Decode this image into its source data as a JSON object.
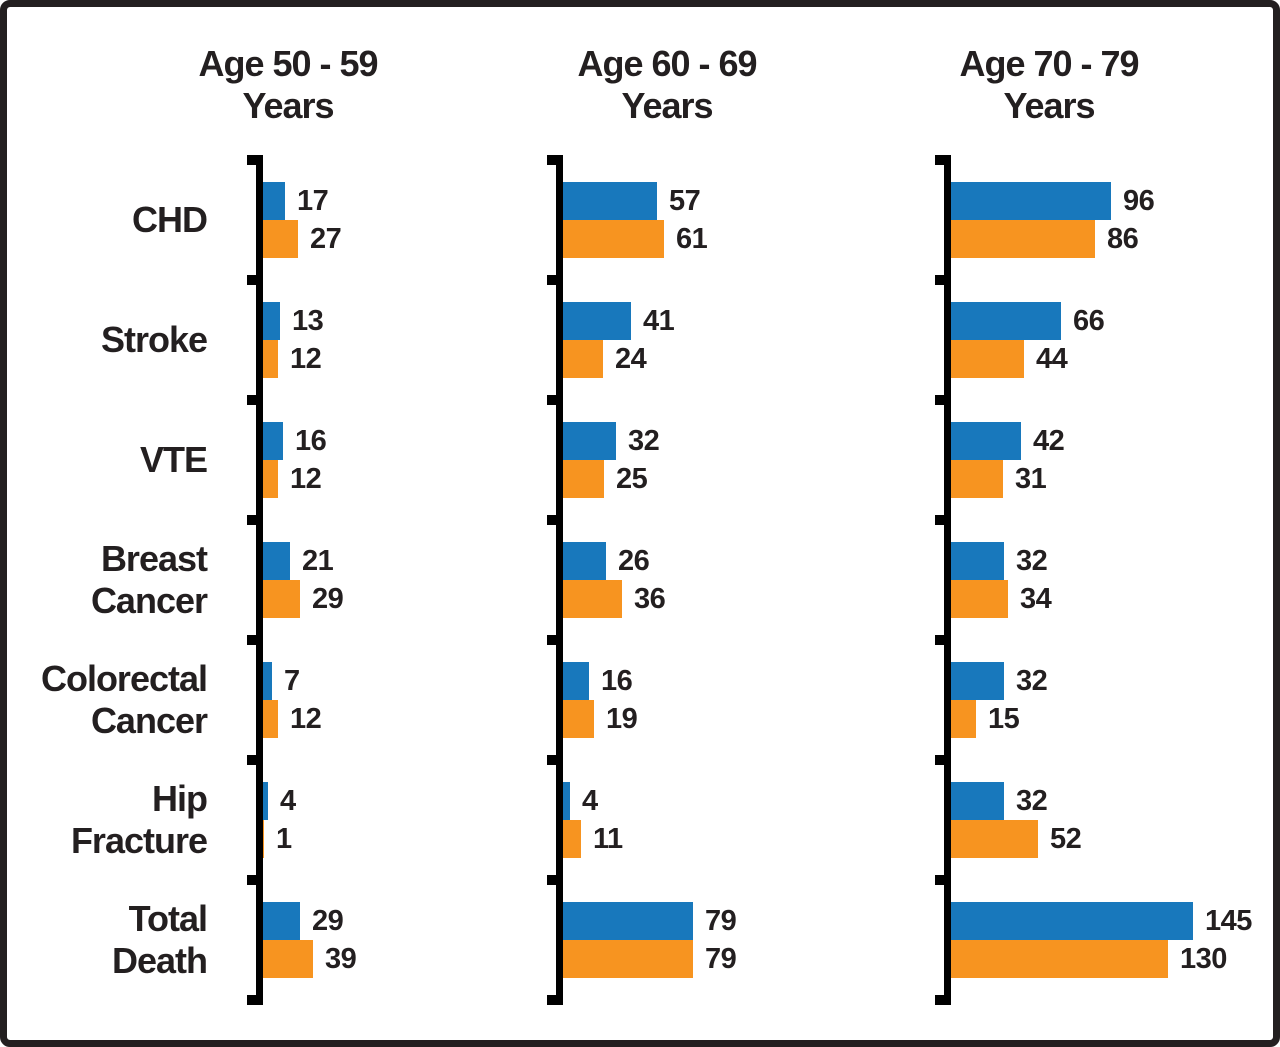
{
  "colors": {
    "axis": "#000000",
    "text": "#231f20",
    "frame_border": "#231f20",
    "background": "#ffffff",
    "series_blue": "#1878BC",
    "series_orange": "#F79420"
  },
  "chart_data": {
    "type": "bar",
    "orientation": "horizontal",
    "grid": false,
    "legend": false,
    "value_labels_shown": true,
    "categories": [
      "CHD",
      "Stroke",
      "VTE",
      "Breast Cancer",
      "Colorectal Cancer",
      "Hip Fracture",
      "Total Death"
    ],
    "category_display_lines": [
      [
        "CHD"
      ],
      [
        "Stroke"
      ],
      [
        "VTE"
      ],
      [
        "Breast",
        "Cancer"
      ],
      [
        "Colorectal",
        "Cancer"
      ],
      [
        "Hip",
        "Fracture"
      ],
      [
        "Total",
        "Death"
      ]
    ],
    "panels": [
      {
        "title": "Age 50 - 59 Years",
        "title_lines": [
          "Age 50 - 59",
          "Years"
        ],
        "series": [
          {
            "name": "blue-series",
            "color": "#1878BC",
            "values": [
              17,
              13,
              16,
              21,
              7,
              4,
              29
            ]
          },
          {
            "name": "orange-series",
            "color": "#F79420",
            "values": [
              27,
              12,
              12,
              29,
              12,
              1,
              39
            ]
          }
        ]
      },
      {
        "title": "Age 60 - 69 Years",
        "title_lines": [
          "Age 60 - 69",
          "Years"
        ],
        "series": [
          {
            "name": "blue-series",
            "color": "#1878BC",
            "values": [
              57,
              41,
              32,
              26,
              16,
              4,
              79
            ]
          },
          {
            "name": "orange-series",
            "color": "#F79420",
            "values": [
              61,
              24,
              25,
              36,
              19,
              11,
              79
            ]
          }
        ]
      },
      {
        "title": "Age 70 - 79 Years",
        "title_lines": [
          "Age 70 - 79",
          "Years"
        ],
        "series": [
          {
            "name": "blue-series",
            "color": "#1878BC",
            "values": [
              96,
              66,
              42,
              32,
              32,
              32,
              145
            ]
          },
          {
            "name": "orange-series",
            "color": "#F79420",
            "values": [
              86,
              44,
              31,
              34,
              15,
              52,
              130
            ]
          }
        ]
      }
    ]
  }
}
